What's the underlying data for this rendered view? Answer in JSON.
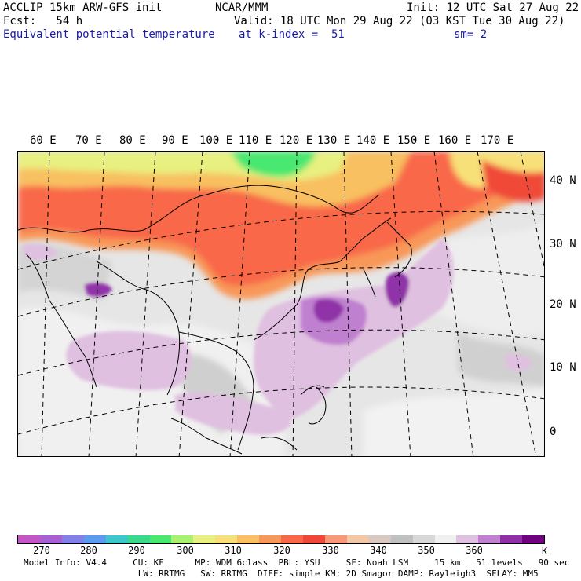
{
  "header": {
    "title_left": "ACCLIP 15km ARW-GFS init",
    "fcst_label": "Fcst:   54 h",
    "field_name": "Equivalent potential temperature",
    "center_org": "NCAR/MMM",
    "valid_time": "Valid: 18 UTC Mon 29 Aug 22 (03 KST Tue 30 Aug 22)",
    "level_info": "at k-index =  51",
    "init_time": "Init: 12 UTC Sat 27 Aug 22",
    "smoothing": "sm= 2"
  },
  "map": {
    "lon_labels": [
      "60 E",
      "70 E",
      "80 E",
      "90 E",
      "100 E",
      "110 E",
      "120 E",
      "130 E",
      "140 E",
      "150 E",
      "160 E",
      "170 E"
    ],
    "lat_labels": [
      "40 N",
      "30 N",
      "20 N",
      "10 N",
      "0"
    ]
  },
  "colorbar": {
    "colors": [
      "#c455c4",
      "#a660d4",
      "#8080e8",
      "#5b9af0",
      "#3cc8c8",
      "#3cd88c",
      "#48e870",
      "#a8f070",
      "#e8f080",
      "#f8e078",
      "#f8c060",
      "#f89858",
      "#f86848",
      "#f04838",
      "#f89878",
      "#f0c8a8",
      "#d8c8c0",
      "#c0c0c0",
      "#d8d8d8",
      "#f0f0f0",
      "#e0c0e0",
      "#c080d0",
      "#9030a8",
      "#700080"
    ],
    "tick_labels": [
      "270",
      "280",
      "290",
      "300",
      "310",
      "320",
      "330",
      "340",
      "350",
      "360"
    ],
    "unit": "K"
  },
  "footer": {
    "line1": "Model Info: V4.4     CU: KF      MP: WDM 6class  PBL: YSU     SF: Noah LSM     15 km   51 levels   90 sec",
    "line2": "                      LW: RRTMG   SW: RRTMG  DIFF: simple KM: 2D Smagor DAMP: Rayleigh3  SFLAY: MM5"
  }
}
